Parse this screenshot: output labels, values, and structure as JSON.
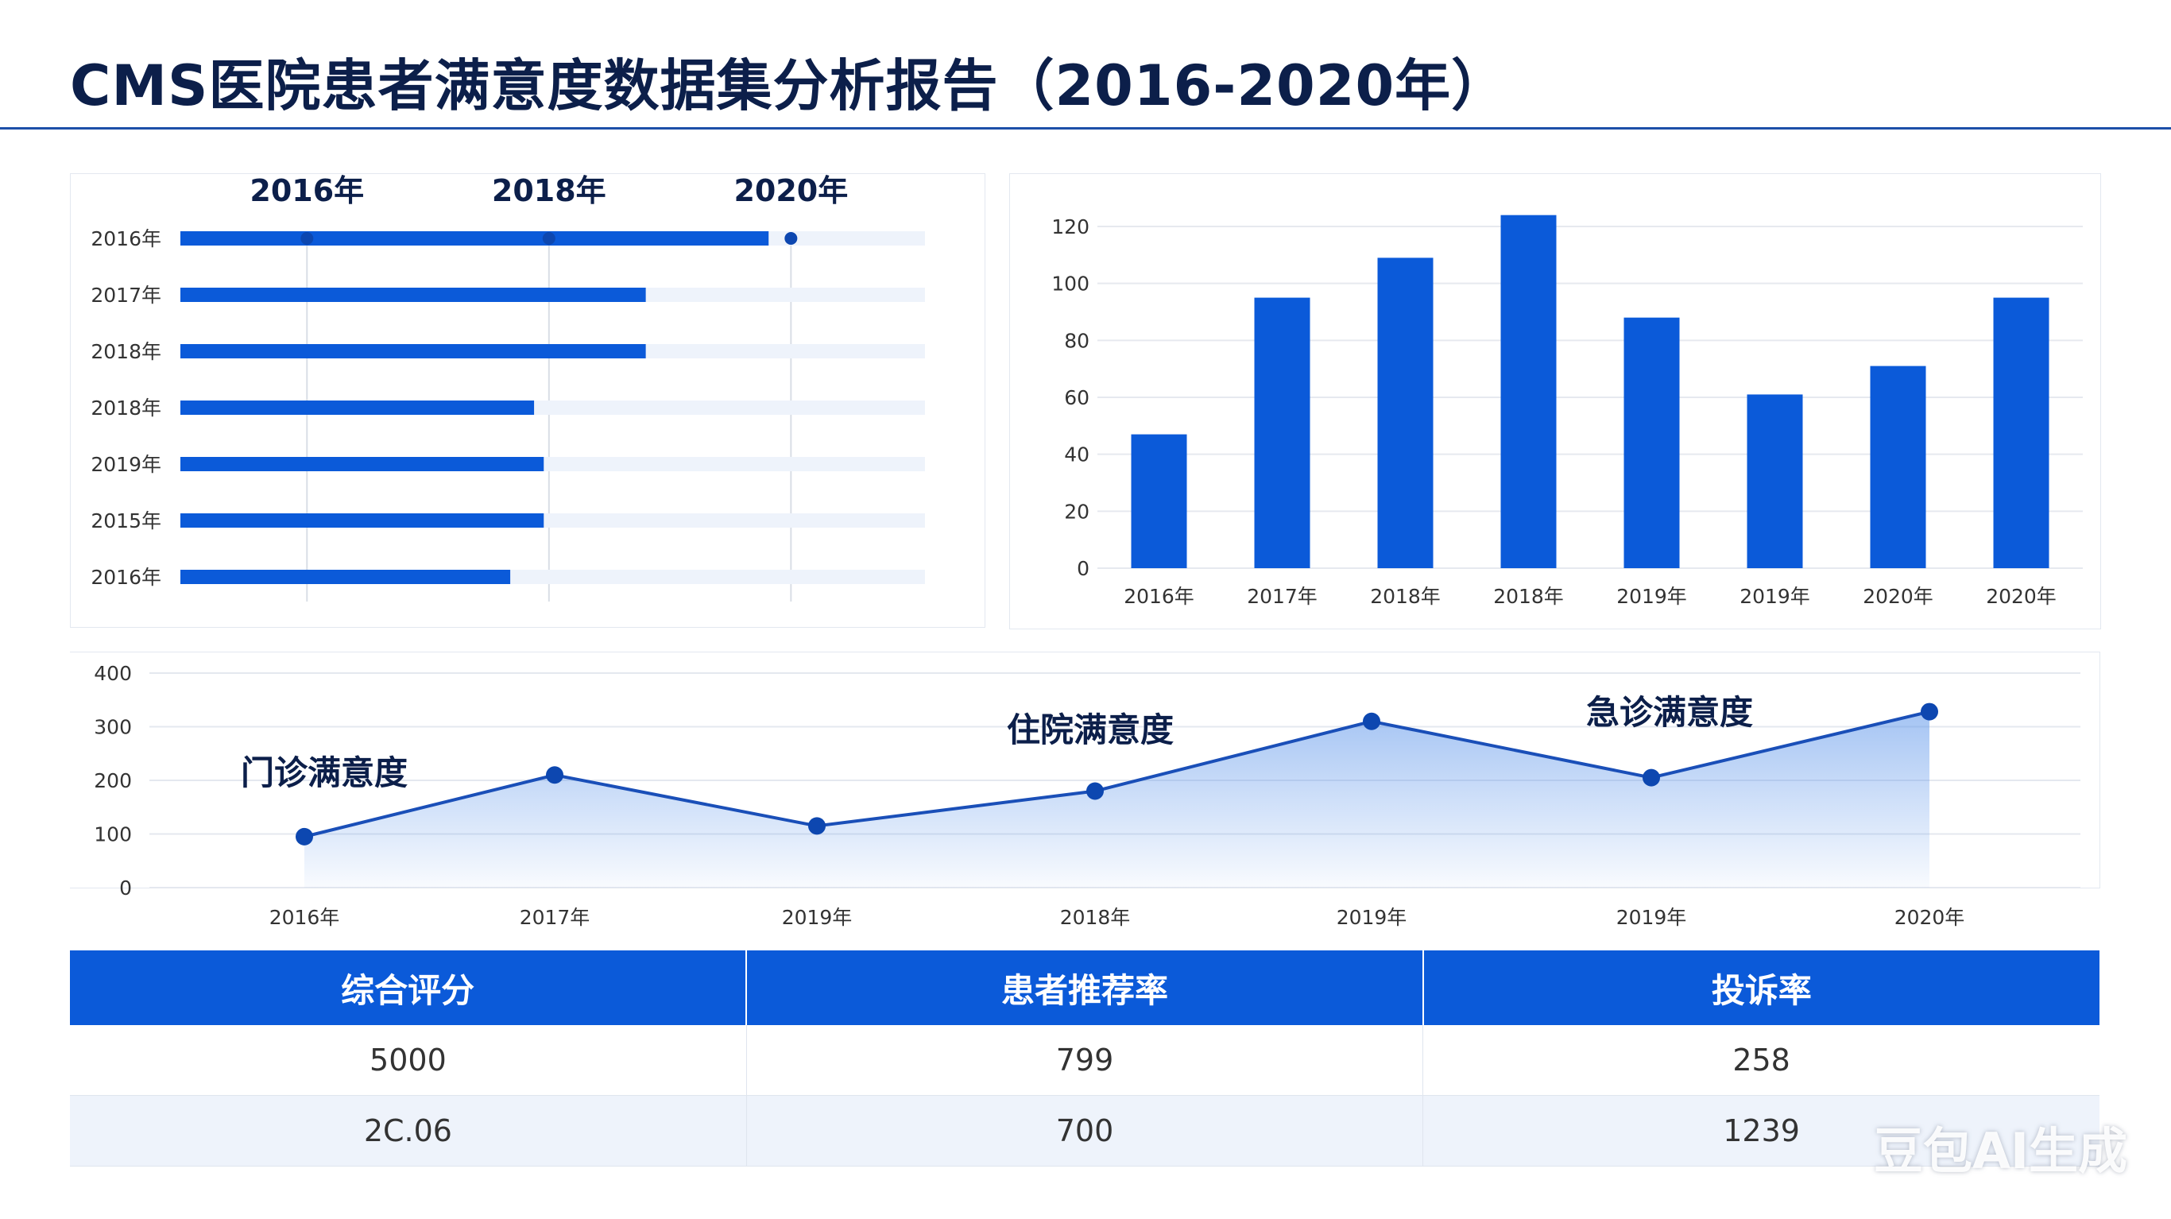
{
  "title": "CMS医院患者满意度数据集分析报告（2016-2020年）",
  "colors": {
    "primary": "#0b5ad9",
    "track": "#eef3fb",
    "title": "#0c1f4a",
    "rule": "#1d4fa8"
  },
  "chart_data": [
    {
      "type": "bar",
      "orientation": "horizontal",
      "top_labels": [
        "2016年",
        "2018年",
        "2020年"
      ],
      "categories": [
        "2016年",
        "2017年",
        "2018年",
        "2018年",
        "2019年",
        "2015年",
        "2016年"
      ],
      "values": [
        0.79,
        0.625,
        0.625,
        0.475,
        0.488,
        0.488,
        0.443
      ],
      "top_markers": [
        0.17,
        0.495,
        0.82
      ],
      "xlim": [
        0,
        1
      ]
    },
    {
      "type": "bar",
      "categories": [
        "2016年",
        "2017年",
        "2018年",
        "2018年",
        "2019年",
        "2019年",
        "2020年",
        "2020年"
      ],
      "values": [
        47,
        95,
        109,
        124,
        88,
        61,
        71,
        95
      ],
      "yticks": [
        0,
        20,
        40,
        60,
        80,
        100,
        120
      ],
      "ylim": [
        0,
        120
      ]
    },
    {
      "type": "area",
      "categories": [
        "2016年",
        "2017年",
        "2019年",
        "2018年",
        "2019年",
        "2019年",
        "2020年"
      ],
      "values": [
        95,
        210,
        115,
        180,
        310,
        205,
        328
      ],
      "yticks": [
        0,
        100,
        200,
        300,
        400
      ],
      "ylim": [
        0,
        400
      ],
      "annotations": [
        "门诊满意度",
        "住院满意度",
        "急诊满意度"
      ]
    }
  ],
  "table": {
    "headers": [
      "综合评分",
      "患者推荐率",
      "投诉率"
    ],
    "rows": [
      [
        "5000",
        "799",
        "258"
      ],
      [
        "2C.06",
        "700",
        "1239"
      ]
    ]
  },
  "watermark": "豆包AI生成"
}
